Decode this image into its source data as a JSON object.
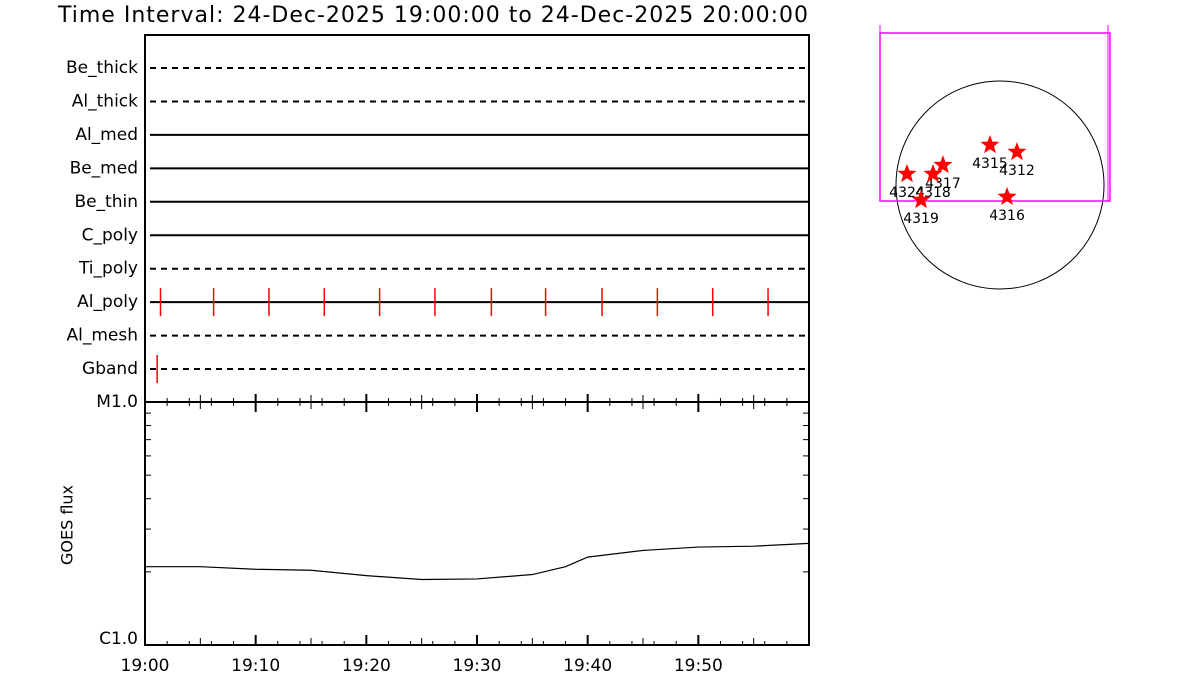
{
  "title": "Time Interval: 24-Dec-2025 19:00:00 to 24-Dec-2025 20:00:00",
  "xlim": [
    0,
    60
  ],
  "xticks": [
    {
      "value": 0,
      "label": "19:00"
    },
    {
      "value": 10,
      "label": "19:10"
    },
    {
      "value": 20,
      "label": "19:20"
    },
    {
      "value": 30,
      "label": "19:30"
    },
    {
      "value": 40,
      "label": "19:40"
    },
    {
      "value": 50,
      "label": "19:50"
    }
  ],
  "xminor": [
    2,
    4,
    5,
    6,
    8,
    12,
    14,
    15,
    16,
    18,
    22,
    24,
    25,
    26,
    28,
    32,
    34,
    35,
    36,
    38,
    42,
    44,
    45,
    46,
    48,
    52,
    54,
    55,
    56,
    58
  ],
  "timeline": {
    "obs_color": "#ff0000",
    "filters": [
      {
        "name": "Be_thick",
        "style": "dashed"
      },
      {
        "name": "Al_thick",
        "style": "dashed"
      },
      {
        "name": "Al_med",
        "style": "solid"
      },
      {
        "name": "Be_med",
        "style": "solid"
      },
      {
        "name": "Be_thin",
        "style": "solid"
      },
      {
        "name": "C_poly",
        "style": "solid"
      },
      {
        "name": "Ti_poly",
        "style": "dashed"
      },
      {
        "name": "Al_poly",
        "style": "solid",
        "obs": [
          1.4,
          6.2,
          11.2,
          16.2,
          21.2,
          26.2,
          31.3,
          36.2,
          41.3,
          46.3,
          51.3,
          56.3
        ]
      },
      {
        "name": "Al_mesh",
        "style": "dashed"
      },
      {
        "name": "Gband",
        "style": "dashed",
        "obs": [
          1.1
        ]
      }
    ]
  },
  "goes": {
    "type": "line",
    "ylabel": "GOES flux",
    "log": true,
    "color": "#000000",
    "ylim": [
      1e-06,
      1e-05
    ],
    "yticks": [
      {
        "value": 1e-06,
        "label": "C1.0"
      },
      {
        "value": 1e-05,
        "label": "M1.0"
      }
    ],
    "yminor": [
      2e-06,
      3e-06,
      4e-06,
      5e-06,
      6e-06,
      7e-06,
      8e-06,
      9e-06
    ],
    "x": [
      0,
      5,
      10,
      15,
      20,
      25,
      30,
      35,
      38,
      40,
      45,
      50,
      55,
      60
    ],
    "values": [
      2.1e-06,
      2.1e-06,
      2.05e-06,
      2.03e-06,
      1.93e-06,
      1.86e-06,
      1.87e-06,
      1.95e-06,
      2.1e-06,
      2.3e-06,
      2.45e-06,
      2.53e-06,
      2.55e-06,
      2.62e-06
    ]
  },
  "sun_map": {
    "radius": 975,
    "fov": {
      "x": [
        -1125,
        1031
      ],
      "y": [
        -150,
        1425
      ]
    },
    "fov_color": "#ff00ff",
    "star_color": "#ff0000",
    "regions": [
      {
        "label": "4315",
        "x": -94,
        "y": 375
      },
      {
        "label": "4312",
        "x": 159,
        "y": 309
      },
      {
        "label": "4317",
        "x": -535,
        "y": 187
      },
      {
        "label": "4318",
        "x": -628,
        "y": 103
      },
      {
        "label": "4324",
        "x": -872,
        "y": 103
      },
      {
        "label": "4319",
        "x": -740,
        "y": -141
      },
      {
        "label": "4316",
        "x": 66,
        "y": -112
      }
    ]
  }
}
